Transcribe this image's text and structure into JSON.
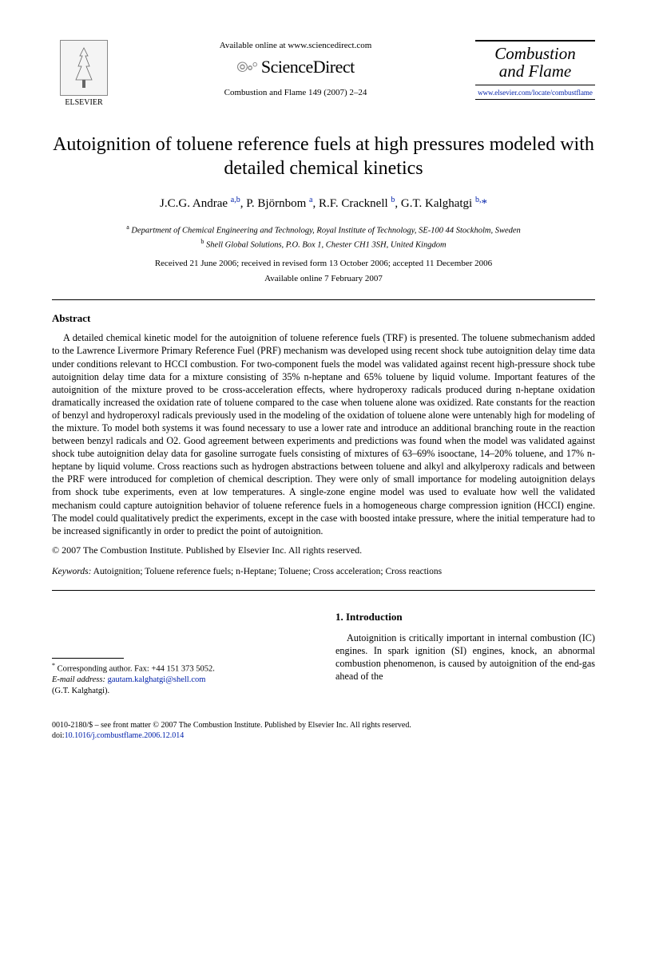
{
  "header": {
    "publisher": "ELSEVIER",
    "available_online": "Available online at www.sciencedirect.com",
    "sd_logo": "ScienceDirect",
    "journal_ref": "Combustion and Flame 149 (2007) 2–24",
    "journal_name_1": "Combustion",
    "journal_name_2": "and Flame",
    "journal_url": "www.elsevier.com/locate/combustflame"
  },
  "title": "Autoignition of toluene reference fuels at high pressures modeled with detailed chemical kinetics",
  "authors_html": "J.C.G. Andrae <sup>a,b</sup>, P. Björnbom <sup>a</sup>, R.F. Cracknell <sup>b</sup>, G.T. Kalghatgi <sup>b,</sup><span class='star'>*</span>",
  "affiliations": {
    "a": "Department of Chemical Engineering and Technology, Royal Institute of Technology, SE-100 44 Stockholm, Sweden",
    "b": "Shell Global Solutions, P.O. Box 1, Chester CH1 3SH, United Kingdom"
  },
  "dates": "Received 21 June 2006; received in revised form 13 October 2006; accepted 11 December 2006",
  "available_date": "Available online 7 February 2007",
  "abstract": {
    "heading": "Abstract",
    "body": "A detailed chemical kinetic model for the autoignition of toluene reference fuels (TRF) is presented. The toluene submechanism added to the Lawrence Livermore Primary Reference Fuel (PRF) mechanism was developed using recent shock tube autoignition delay time data under conditions relevant to HCCI combustion. For two-component fuels the model was validated against recent high-pressure shock tube autoignition delay time data for a mixture consisting of 35% n-heptane and 65% toluene by liquid volume. Important features of the autoignition of the mixture proved to be cross-acceleration effects, where hydroperoxy radicals produced during n-heptane oxidation dramatically increased the oxidation rate of toluene compared to the case when toluene alone was oxidized. Rate constants for the reaction of benzyl and hydroperoxyl radicals previously used in the modeling of the oxidation of toluene alone were untenably high for modeling of the mixture. To model both systems it was found necessary to use a lower rate and introduce an additional branching route in the reaction between benzyl radicals and O2. Good agreement between experiments and predictions was found when the model was validated against shock tube autoignition delay data for gasoline surrogate fuels consisting of mixtures of 63–69% isooctane, 14–20% toluene, and 17% n-heptane by liquid volume. Cross reactions such as hydrogen abstractions between toluene and alkyl and alkylperoxy radicals and between the PRF were introduced for completion of chemical description. They were only of small importance for modeling autoignition delays from shock tube experiments, even at low temperatures. A single-zone engine model was used to evaluate how well the validated mechanism could capture autoignition behavior of toluene reference fuels in a homogeneous charge compression ignition (HCCI) engine. The model could qualitatively predict the experiments, except in the case with boosted intake pressure, where the initial temperature had to be increased significantly in order to predict the point of autoignition.",
    "copyright": "© 2007 The Combustion Institute. Published by Elsevier Inc. All rights reserved."
  },
  "keywords": {
    "label": "Keywords:",
    "list": "Autoignition; Toluene reference fuels; n-Heptane; Toluene; Cross acceleration; Cross reactions"
  },
  "corresponding": {
    "line1": "Corresponding author. Fax: +44 151 373 5052.",
    "email_label": "E-mail address:",
    "email": "gautam.kalghatgi@shell.com",
    "person": "(G.T. Kalghatgi)."
  },
  "intro": {
    "heading": "1. Introduction",
    "body": "Autoignition is critically important in internal combustion (IC) engines. In spark ignition (SI) engines, knock, an abnormal combustion phenomenon, is caused by autoignition of the end-gas ahead of the"
  },
  "footer": {
    "line": "0010-2180/$ – see front matter © 2007 The Combustion Institute. Published by Elsevier Inc. All rights reserved.",
    "doi_label": "doi:",
    "doi": "10.1016/j.combustflame.2006.12.014"
  },
  "colors": {
    "link": "#0020aa",
    "text": "#000000",
    "background": "#ffffff"
  }
}
